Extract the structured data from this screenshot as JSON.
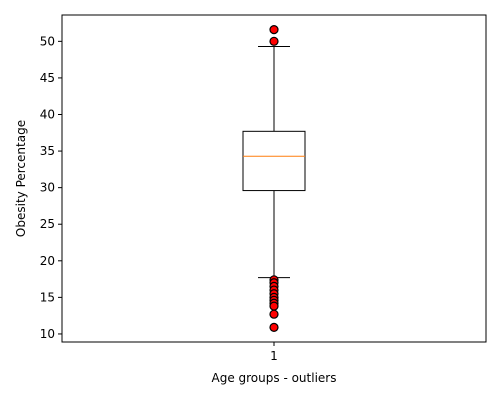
{
  "chart_data": {
    "type": "box",
    "xlabel": "Age groups - outliers",
    "ylabel": "Obesity Percentage",
    "ylim": [
      8.9,
      53.6
    ],
    "yticks": [
      10,
      15,
      20,
      25,
      30,
      35,
      40,
      45,
      50
    ],
    "categories": [
      "1"
    ],
    "boxes": [
      {
        "category": "1",
        "whisker_low": 17.7,
        "q1": 29.6,
        "median": 34.3,
        "q3": 37.7,
        "whisker_high": 49.3,
        "outliers": [
          51.6,
          50.0,
          17.4,
          17.0,
          16.5,
          16.0,
          15.5,
          15.0,
          14.6,
          14.2,
          13.8,
          12.7,
          10.9
        ]
      }
    ],
    "grid": false,
    "legend": "none",
    "colors": {
      "box": "#000000",
      "median": "#ff7f0e",
      "outlier_fill": "#ff0000",
      "outlier_edge": "#000000"
    }
  }
}
